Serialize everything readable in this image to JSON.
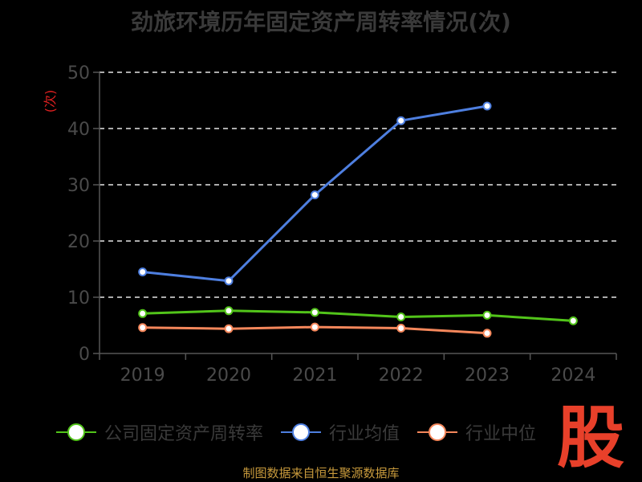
{
  "chart_data": {
    "type": "line",
    "title": "劲旅环境历年固定资产周转率情况(次)",
    "ylabel": "(次)",
    "categories": [
      "2019",
      "2020",
      "2021",
      "2022",
      "2023",
      "2024"
    ],
    "ylim": [
      0,
      50
    ],
    "yticks": [
      0,
      10,
      20,
      30,
      40,
      50
    ],
    "grid": true,
    "legend_position": "bottom",
    "series": [
      {
        "name": "公司固定资产周转率",
        "color": "#52c41a",
        "values": [
          7.1,
          7.6,
          7.3,
          6.5,
          6.8,
          5.8
        ]
      },
      {
        "name": "行业均值",
        "color": "#4e7fe0",
        "values": [
          14.5,
          12.9,
          28.2,
          41.4,
          44.0,
          null
        ]
      },
      {
        "name": "行业中位数",
        "color": "#f5875b",
        "values": [
          4.6,
          4.4,
          4.7,
          4.5,
          3.6,
          null
        ]
      }
    ]
  },
  "legend": [
    {
      "label": "公司固定资产周转率",
      "color": "#52c41a"
    },
    {
      "label": "行业均值",
      "color": "#4e7fe0"
    },
    {
      "label": "行业中位",
      "color": "#f5875b"
    }
  ],
  "source": "制图数据来自恒生聚源数据库",
  "logo_text": "股"
}
